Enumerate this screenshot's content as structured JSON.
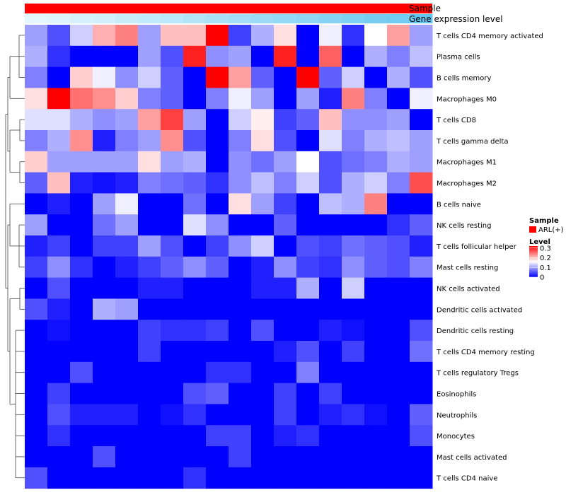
{
  "chart_data": {
    "type": "heatmap",
    "title": "",
    "annotation_tracks": [
      {
        "name": "Sample",
        "label": "Sample",
        "color": "#ff0000"
      },
      {
        "name": "Gene expression level",
        "label": "Gene expression level",
        "color_low": "#f0fbff",
        "color_high": "#63c6f0"
      }
    ],
    "legend": {
      "sample_title": "Sample",
      "sample_entries": [
        {
          "label": "ARL(+)",
          "color": "#ff0000"
        }
      ],
      "level_title": "Level",
      "level_ticks": [
        "0.3",
        "0.2",
        "0.1",
        "0"
      ],
      "colors": {
        "low": "#0000ff",
        "mid": "#ffffff",
        "high": "#ff0000"
      },
      "range": [
        0,
        0.32
      ]
    },
    "rows": [
      "T cells CD4 memory activated",
      "Plasma cells",
      "B cells memory",
      "Macrophages M0",
      "T cells CD8",
      "T cells gamma delta",
      "Macrophages M1",
      "Macrophages M2",
      "B cells naive",
      "NK cells resting",
      "T cells follicular helper",
      "Mast cells resting",
      "NK cells activated",
      "Dendritic cells activated",
      "Dendritic cells resting",
      "T cells CD4 memory resting",
      "T cells regulatory  Tregs",
      "Eosinophils",
      "Neutrophils",
      "Monocytes",
      "Mast cells activated",
      "T cells CD4 naive"
    ],
    "n_columns": 18,
    "values": [
      [
        0.1,
        0.05,
        0.13,
        0.21,
        0.24,
        0.1,
        0.2,
        0.2,
        0.32,
        0.04,
        0.11,
        0.18,
        0.0,
        0.15,
        0.03,
        0.16,
        0.22,
        0.1
      ],
      [
        0.11,
        0.03,
        0.0,
        0.0,
        0.0,
        0.1,
        0.05,
        0.3,
        0.09,
        0.1,
        0.0,
        0.3,
        0.0,
        0.26,
        0.0,
        0.11,
        0.08,
        0.12
      ],
      [
        0.08,
        0.0,
        0.19,
        0.15,
        0.09,
        0.13,
        0.06,
        0.0,
        0.32,
        0.22,
        0.06,
        0.0,
        0.32,
        0.06,
        0.13,
        0.0,
        0.11,
        0.05
      ],
      [
        0.18,
        0.32,
        0.25,
        0.23,
        0.19,
        0.08,
        0.06,
        0.0,
        0.08,
        0.15,
        0.1,
        0.0,
        0.1,
        0.02,
        0.24,
        0.08,
        0.0,
        0.15
      ],
      [
        0.14,
        0.14,
        0.11,
        0.09,
        0.1,
        0.22,
        0.28,
        0.1,
        0.0,
        0.13,
        0.17,
        0.04,
        0.06,
        0.2,
        0.09,
        0.09,
        0.1,
        0.0
      ],
      [
        0.08,
        0.11,
        0.23,
        0.02,
        0.08,
        0.1,
        0.23,
        0.05,
        0.0,
        0.08,
        0.18,
        0.05,
        0.0,
        0.14,
        0.08,
        0.11,
        0.12,
        0.1
      ],
      [
        0.19,
        0.1,
        0.1,
        0.1,
        0.1,
        0.18,
        0.1,
        0.11,
        0.0,
        0.09,
        0.07,
        0.1,
        0.16,
        0.05,
        0.07,
        0.08,
        0.11,
        0.1
      ],
      [
        0.06,
        0.2,
        0.02,
        0.01,
        0.02,
        0.08,
        0.07,
        0.06,
        0.03,
        0.09,
        0.12,
        0.08,
        0.13,
        0.05,
        0.11,
        0.13,
        0.08,
        0.27
      ],
      [
        0.0,
        0.02,
        0.0,
        0.1,
        0.15,
        0.0,
        0.0,
        0.07,
        0.0,
        0.18,
        0.1,
        0.04,
        0.0,
        0.12,
        0.11,
        0.24,
        0.0,
        0.0
      ],
      [
        0.1,
        0.0,
        0.0,
        0.07,
        0.1,
        0.0,
        0.0,
        0.14,
        0.09,
        0.0,
        0.0,
        0.06,
        0.0,
        0.0,
        0.0,
        0.0,
        0.03,
        0.06
      ],
      [
        0.02,
        0.04,
        0.0,
        0.04,
        0.04,
        0.1,
        0.05,
        0.0,
        0.04,
        0.09,
        0.13,
        0.0,
        0.05,
        0.04,
        0.07,
        0.06,
        0.05,
        0.02
      ],
      [
        0.04,
        0.09,
        0.03,
        0.0,
        0.02,
        0.04,
        0.06,
        0.09,
        0.06,
        0.0,
        0.02,
        0.09,
        0.04,
        0.03,
        0.09,
        0.06,
        0.05,
        0.08
      ],
      [
        0.0,
        0.05,
        0.0,
        0.0,
        0.0,
        0.02,
        0.02,
        0.0,
        0.0,
        0.0,
        0.02,
        0.02,
        0.11,
        0.0,
        0.13,
        0.0,
        0.0,
        0.0
      ],
      [
        0.05,
        0.02,
        0.0,
        0.11,
        0.1,
        0.0,
        0.0,
        0.0,
        0.0,
        0.0,
        0.0,
        0.0,
        0.0,
        0.0,
        0.0,
        0.0,
        0.0,
        0.0
      ],
      [
        0.0,
        0.01,
        0.0,
        0.0,
        0.0,
        0.04,
        0.03,
        0.03,
        0.04,
        0.0,
        0.05,
        0.0,
        0.0,
        0.02,
        0.01,
        0.0,
        0.0,
        0.05
      ],
      [
        0.0,
        0.0,
        0.0,
        0.0,
        0.0,
        0.04,
        0.0,
        0.0,
        0.0,
        0.0,
        0.0,
        0.02,
        0.05,
        0.0,
        0.04,
        0.0,
        0.0,
        0.07
      ],
      [
        0.0,
        0.0,
        0.05,
        0.0,
        0.0,
        0.0,
        0.0,
        0.0,
        0.03,
        0.03,
        0.0,
        0.0,
        0.08,
        0.0,
        0.0,
        0.0,
        0.0,
        0.0
      ],
      [
        0.0,
        0.04,
        0.0,
        0.0,
        0.0,
        0.0,
        0.0,
        0.05,
        0.06,
        0.0,
        0.0,
        0.04,
        0.0,
        0.04,
        0.0,
        0.0,
        0.0,
        0.0
      ],
      [
        0.0,
        0.05,
        0.02,
        0.02,
        0.02,
        0.0,
        0.01,
        0.03,
        0.0,
        0.0,
        0.0,
        0.04,
        0.0,
        0.02,
        0.03,
        0.01,
        0.0,
        0.06
      ],
      [
        0.0,
        0.03,
        0.0,
        0.0,
        0.0,
        0.0,
        0.0,
        0.0,
        0.04,
        0.04,
        0.0,
        0.02,
        0.03,
        0.0,
        0.0,
        0.0,
        0.0,
        0.05
      ],
      [
        0.0,
        0.0,
        0.0,
        0.05,
        0.0,
        0.0,
        0.0,
        0.0,
        0.0,
        0.04,
        0.0,
        0.0,
        0.0,
        0.0,
        0.0,
        0.0,
        0.0,
        0.0
      ],
      [
        0.05,
        0.0,
        0.0,
        0.0,
        0.0,
        0.0,
        0.0,
        0.03,
        0.0,
        0.0,
        0.0,
        0.0,
        0.0,
        0.0,
        0.0,
        0.0,
        0.0,
        0.0
      ]
    ],
    "gene_expression_level": [
      0.08,
      0.12,
      0.18,
      0.22,
      0.28,
      0.33,
      0.38,
      0.44,
      0.5,
      0.55,
      0.6,
      0.65,
      0.7,
      0.75,
      0.8,
      0.85,
      0.9,
      1.0
    ]
  }
}
